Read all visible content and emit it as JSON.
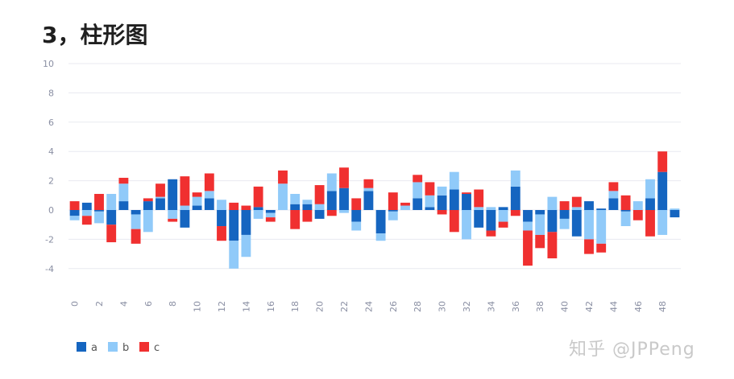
{
  "heading": "3，柱形图",
  "watermark": "知乎 @JPPeng",
  "chart_data": {
    "type": "bar",
    "stacked": true,
    "stack_mode": "positive/negative stacked separately",
    "x": [
      0,
      1,
      2,
      3,
      4,
      5,
      6,
      7,
      8,
      9,
      10,
      11,
      12,
      13,
      14,
      15,
      16,
      17,
      18,
      19,
      20,
      21,
      22,
      23,
      24,
      25,
      26,
      27,
      28,
      29,
      30,
      31,
      32,
      33,
      34,
      35,
      36,
      37,
      38,
      39,
      40,
      41,
      42,
      43,
      44,
      45,
      46,
      47,
      48,
      49
    ],
    "x_tick_labels": [
      "0",
      "2",
      "4",
      "6",
      "8",
      "10",
      "12",
      "14",
      "16",
      "18",
      "20",
      "22",
      "24",
      "26",
      "28",
      "30",
      "32",
      "34",
      "36",
      "38",
      "40",
      "42",
      "44",
      "46",
      "48"
    ],
    "y_ticks": [
      "-4",
      "-2",
      "0",
      "2",
      "4",
      "6",
      "8",
      "10"
    ],
    "ylim": [
      -5,
      10
    ],
    "grid": true,
    "legend_position": "bottom-left",
    "series": [
      {
        "name": "a",
        "color": "#1565c0",
        "values": [
          -0.4,
          0.5,
          -0.1,
          -1.0,
          0.6,
          -0.3,
          0.6,
          0.8,
          2.1,
          -1.2,
          0.3,
          0.8,
          -1.1,
          -2.1,
          -1.7,
          0.2,
          -0.2,
          0.0,
          0.4,
          0.4,
          -0.6,
          1.3,
          1.5,
          -0.8,
          1.3,
          -1.6,
          -0.1,
          0.0,
          0.8,
          0.2,
          1.0,
          1.4,
          1.1,
          -1.2,
          -1.4,
          0.2,
          1.6,
          -0.8,
          -0.3,
          -1.5,
          -0.6,
          -1.8,
          0.6,
          0.1,
          0.8,
          -0.1,
          0.0,
          0.8,
          2.6,
          -0.5
        ]
      },
      {
        "name": "b",
        "color": "#90caf9",
        "values": [
          -0.3,
          -0.4,
          -0.8,
          1.1,
          1.2,
          -1.0,
          -1.5,
          0.1,
          -0.6,
          0.3,
          0.6,
          0.5,
          0.7,
          -1.9,
          -1.5,
          -0.6,
          -0.3,
          1.8,
          0.7,
          0.3,
          0.4,
          1.2,
          -0.2,
          -0.6,
          0.2,
          -0.5,
          -0.6,
          0.3,
          1.1,
          0.8,
          0.6,
          1.2,
          -2.0,
          0.2,
          0.2,
          -0.8,
          1.1,
          -0.6,
          -1.4,
          0.9,
          -0.7,
          0.2,
          -2.0,
          -2.3,
          0.5,
          -1.0,
          0.6,
          1.3,
          -1.7,
          0.1
        ]
      },
      {
        "name": "c",
        "color": "#f03030",
        "values": [
          0.6,
          -0.6,
          1.1,
          -1.2,
          0.4,
          -1.0,
          0.2,
          0.9,
          -0.2,
          2.0,
          0.3,
          1.2,
          -1.0,
          0.5,
          0.3,
          1.4,
          -0.3,
          0.9,
          -1.3,
          -0.8,
          1.3,
          -0.4,
          1.4,
          0.8,
          0.6,
          0.0,
          1.2,
          0.2,
          0.5,
          0.9,
          -0.3,
          -1.5,
          0.1,
          1.2,
          -0.4,
          -0.4,
          -0.4,
          -2.4,
          -0.9,
          -1.8,
          0.6,
          0.7,
          -1.0,
          -0.6,
          0.6,
          1.0,
          -0.7,
          -1.8,
          1.4,
          0.0
        ]
      }
    ]
  }
}
